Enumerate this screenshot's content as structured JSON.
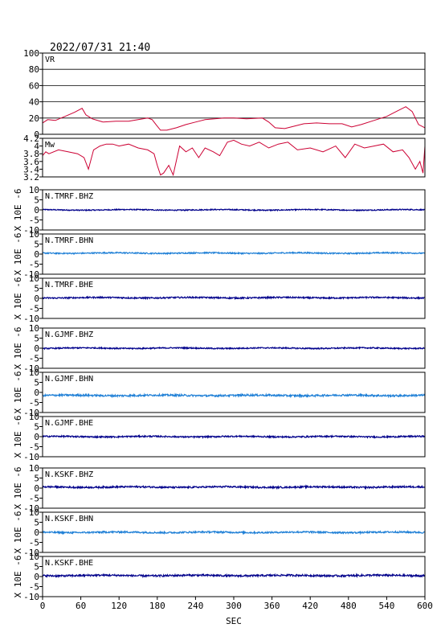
{
  "header": {
    "datetime": "2022/07/31 21:40"
  },
  "chart_data": {
    "type": "line",
    "x_axis": {
      "label": "SEC",
      "range": [
        0,
        600
      ],
      "ticks": [
        0,
        60,
        120,
        180,
        240,
        300,
        360,
        420,
        480,
        540,
        600
      ]
    },
    "grid": "horizontal lines in VR panel only",
    "panels": [
      {
        "label": "VR",
        "ylim": [
          0,
          100
        ],
        "yticks": [
          0,
          20,
          40,
          60,
          80,
          100
        ],
        "color": "#cc0033",
        "series": {
          "x": [
            0,
            8,
            20,
            35,
            50,
            62,
            68,
            78,
            95,
            115,
            135,
            150,
            165,
            172,
            178,
            185,
            195,
            210,
            225,
            240,
            255,
            270,
            285,
            300,
            320,
            345,
            355,
            365,
            380,
            395,
            410,
            430,
            450,
            470,
            485,
            500,
            520,
            540,
            555,
            570,
            580,
            590,
            600
          ],
          "y": [
            14,
            18,
            17,
            22,
            27,
            32,
            24,
            19,
            15,
            16,
            16,
            18,
            20,
            18,
            12,
            5,
            5,
            8,
            12,
            15,
            18,
            19,
            20,
            20,
            19,
            20,
            15,
            8,
            7,
            10,
            13,
            14,
            13,
            13,
            9,
            12,
            17,
            22,
            28,
            34,
            28,
            12,
            8
          ]
        }
      },
      {
        "label": "Mw",
        "ylim": [
          3.2,
          4.2
        ],
        "yticks": [
          3.2,
          3.4,
          3.6,
          3.8,
          4.0,
          4.2
        ],
        "color": "#cc0033",
        "series": {
          "x": [
            0,
            5,
            10,
            25,
            40,
            55,
            65,
            72,
            80,
            90,
            100,
            110,
            120,
            135,
            150,
            165,
            175,
            180,
            185,
            190,
            198,
            205,
            215,
            225,
            235,
            245,
            255,
            268,
            278,
            290,
            300,
            312,
            325,
            340,
            355,
            370,
            385,
            400,
            420,
            440,
            460,
            475,
            490,
            505,
            520,
            535,
            550,
            565,
            575,
            585,
            592,
            597,
            600
          ],
          "y": [
            3.75,
            3.85,
            3.8,
            3.9,
            3.85,
            3.8,
            3.7,
            3.4,
            3.9,
            4.0,
            4.05,
            4.05,
            4.0,
            4.05,
            3.95,
            3.9,
            3.8,
            3.5,
            3.25,
            3.3,
            3.5,
            3.25,
            4.0,
            3.85,
            3.95,
            3.7,
            3.95,
            3.85,
            3.75,
            4.1,
            4.15,
            4.05,
            4.0,
            4.1,
            3.95,
            4.05,
            4.1,
            3.9,
            3.95,
            3.85,
            4.0,
            3.7,
            4.05,
            3.95,
            4.0,
            4.05,
            3.85,
            3.9,
            3.7,
            3.4,
            3.6,
            3.3,
            4.0
          ]
        }
      },
      {
        "label": "N.TMRF.BHZ",
        "ylim": [
          -10,
          10
        ],
        "yticks": [
          -10,
          -5,
          0,
          5,
          10
        ],
        "ylabel": "X 10E -6",
        "color": "#00008b",
        "offset": 0.0,
        "amp": 0.25,
        "x_range": [
          0,
          600
        ]
      },
      {
        "label": "N.TMRF.BHN",
        "ylim": [
          -10,
          10
        ],
        "yticks": [
          -10,
          -5,
          0,
          5,
          10
        ],
        "ylabel": "X 10E -6",
        "color": "#1e7fd6",
        "offset": 0.5,
        "amp": 0.3,
        "x_range": [
          0,
          600
        ]
      },
      {
        "label": "N.TMRF.BHE",
        "ylim": [
          -10,
          10
        ],
        "yticks": [
          -10,
          -5,
          0,
          5,
          10
        ],
        "ylabel": "X 10E -6",
        "color": "#00008b",
        "offset": 0.3,
        "amp": 0.35,
        "x_range": [
          0,
          600
        ]
      },
      {
        "label": "N.GJMF.BHZ",
        "ylim": [
          -10,
          10
        ],
        "yticks": [
          -10,
          -5,
          0,
          5,
          10
        ],
        "ylabel": "X 10E -6",
        "color": "#00008b",
        "offset": 0.0,
        "amp": 0.3,
        "x_range": [
          0,
          600
        ]
      },
      {
        "label": "N.GJMF.BHN",
        "ylim": [
          -10,
          10
        ],
        "yticks": [
          -10,
          -5,
          0,
          5,
          10
        ],
        "ylabel": "X 10E -6",
        "color": "#1e7fd6",
        "offset": -1.5,
        "amp": 0.45,
        "x_range": [
          0,
          600
        ]
      },
      {
        "label": "N.GJMF.BHE",
        "ylim": [
          -10,
          10
        ],
        "yticks": [
          -10,
          -5,
          0,
          5,
          10
        ],
        "ylabel": "X 10E -6",
        "color": "#00008b",
        "offset": 0.0,
        "amp": 0.35,
        "x_range": [
          0,
          600
        ]
      },
      {
        "label": "N.KSKF.BHZ",
        "ylim": [
          -10,
          10
        ],
        "yticks": [
          -10,
          -5,
          0,
          5,
          10
        ],
        "ylabel": "X 10E -6",
        "color": "#00008b",
        "offset": 0.5,
        "amp": 0.4,
        "x_range": [
          0,
          600
        ]
      },
      {
        "label": "N.KSKF.BHN",
        "ylim": [
          -10,
          10
        ],
        "yticks": [
          -10,
          -5,
          0,
          5,
          10
        ],
        "ylabel": "X 10E -6",
        "color": "#1e7fd6",
        "offset": 0.0,
        "amp": 0.4,
        "x_range": [
          0,
          600
        ]
      },
      {
        "label": "N.KSKF.BHE",
        "ylim": [
          -10,
          10
        ],
        "yticks": [
          -10,
          -5,
          0,
          5,
          10
        ],
        "ylabel": "X 10E -6",
        "color": "#00008b",
        "offset": 0.5,
        "amp": 0.45,
        "x_range": [
          0,
          600
        ]
      }
    ]
  }
}
